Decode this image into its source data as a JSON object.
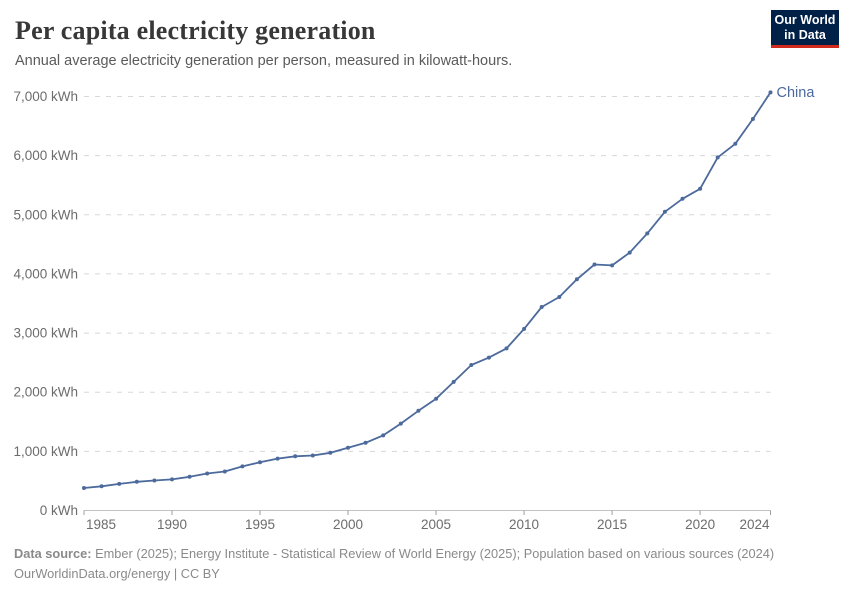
{
  "header": {
    "title": "Per capita electricity generation",
    "subtitle": "Annual average electricity generation per person, measured in kilowatt-hours."
  },
  "logo": {
    "line1": "Our World",
    "line2": "in Data",
    "background_color": "#002147",
    "accent_color": "#d02a1e"
  },
  "chart_data": {
    "type": "line",
    "title": "Per capita electricity generation",
    "xlabel": "",
    "ylabel": "kWh",
    "xlim": [
      1985,
      2024
    ],
    "ylim": [
      0,
      7000
    ],
    "grid": "horizontal-dashed",
    "legend": "end-of-line-label",
    "xticks": [
      1985,
      1990,
      1995,
      2000,
      2005,
      2010,
      2015,
      2020,
      2024
    ],
    "yticks": [
      {
        "value": 0,
        "label": "0 kWh"
      },
      {
        "value": 1000,
        "label": "1,000 kWh"
      },
      {
        "value": 2000,
        "label": "2,000 kWh"
      },
      {
        "value": 3000,
        "label": "3,000 kWh"
      },
      {
        "value": 4000,
        "label": "4,000 kWh"
      },
      {
        "value": 5000,
        "label": "5,000 kWh"
      },
      {
        "value": 6000,
        "label": "6,000 kWh"
      },
      {
        "value": 7000,
        "label": "7,000 kWh"
      }
    ],
    "series": [
      {
        "name": "China",
        "color": "#4c6a9c",
        "x": [
          1985,
          1986,
          1987,
          1988,
          1989,
          1990,
          1991,
          1992,
          1993,
          1994,
          1995,
          1996,
          1997,
          1998,
          1999,
          2000,
          2001,
          2002,
          2003,
          2004,
          2005,
          2006,
          2007,
          2008,
          2009,
          2010,
          2011,
          2012,
          2013,
          2014,
          2015,
          2016,
          2017,
          2018,
          2019,
          2020,
          2021,
          2022,
          2023,
          2024
        ],
        "values": [
          380,
          410,
          450,
          485,
          508,
          525,
          570,
          625,
          660,
          745,
          815,
          878,
          917,
          930,
          975,
          1060,
          1145,
          1270,
          1470,
          1685,
          1890,
          2175,
          2460,
          2585,
          2740,
          3070,
          3440,
          3610,
          3910,
          4160,
          4145,
          4360,
          4685,
          5050,
          5270,
          5440,
          5970,
          6200,
          6620,
          7070
        ]
      }
    ]
  },
  "footer": {
    "source_label": "Data source:",
    "source_text": "Ember (2025); Energy Institute - Statistical Review of World Energy (2025); Population based on various sources (2024)",
    "url": "OurWorldinData.org/energy",
    "separator": "|",
    "license": "CC BY"
  }
}
